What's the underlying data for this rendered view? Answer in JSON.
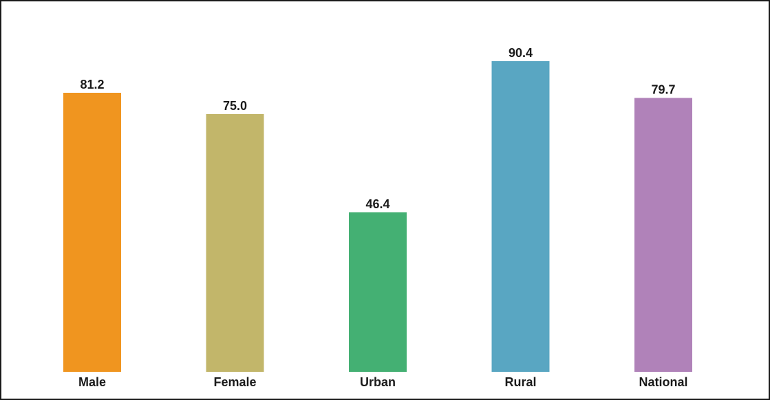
{
  "chart_data": {
    "type": "bar",
    "title": "",
    "xlabel": "",
    "ylabel": "",
    "categories": [
      "Male",
      "Female",
      "Urban",
      "Rural",
      "National"
    ],
    "values": [
      81.2,
      75.0,
      46.4,
      90.4,
      79.7
    ],
    "value_labels": [
      "81.2",
      "75.0",
      "46.4",
      "90.4",
      "79.7"
    ],
    "colors": [
      "#f0951f",
      "#c2b66a",
      "#44b073",
      "#59a6c2",
      "#b082b9"
    ],
    "ylim": [
      0,
      100
    ],
    "grid": false,
    "legend": "none"
  }
}
